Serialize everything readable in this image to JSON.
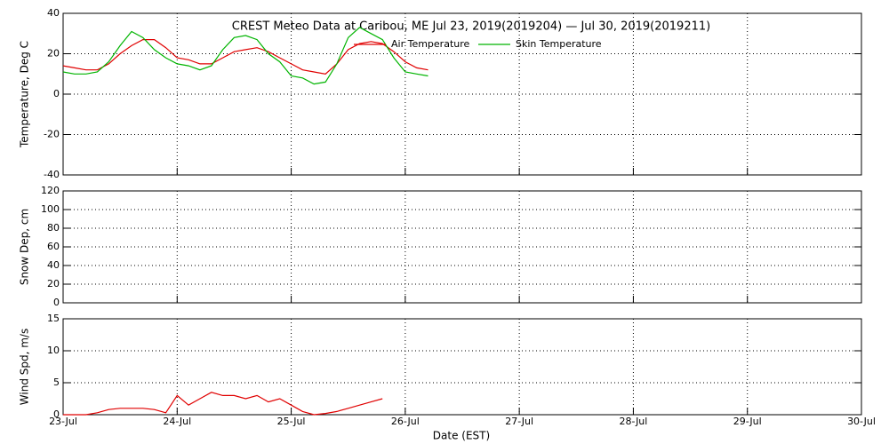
{
  "chart_data": [
    {
      "type": "line",
      "title": "CREST Meteo Data at Caribou, ME   Jul 23, 2019(2019204) — Jul 30, 2019(2019211)",
      "ylabel": "Temperature, Deg C",
      "ylim": [
        -40,
        40
      ],
      "yticks": [
        -40,
        -20,
        0,
        20,
        40
      ],
      "xlim": [
        0,
        7
      ],
      "grid": true,
      "x": [
        0,
        0.1,
        0.2,
        0.3,
        0.4,
        0.5,
        0.6,
        0.7,
        0.8,
        0.9,
        1.0,
        1.1,
        1.2,
        1.3,
        1.4,
        1.5,
        1.6,
        1.7,
        1.8,
        1.9,
        2.0,
        2.1,
        2.2,
        2.3,
        2.4,
        2.5,
        2.6,
        2.7,
        2.8,
        2.9,
        3.0,
        3.1,
        3.2
      ],
      "series": [
        {
          "name": "Air Temperature",
          "color": "#e00000",
          "values": [
            14,
            13,
            12,
            12,
            15,
            20,
            24,
            27,
            27,
            23,
            18,
            17,
            15,
            15,
            18,
            21,
            22,
            23,
            21,
            18,
            15,
            12,
            11,
            10,
            15,
            22,
            25,
            26,
            25,
            21,
            16,
            13,
            12
          ]
        },
        {
          "name": "Skin Temperature",
          "color": "#00b400",
          "values": [
            11,
            10,
            10,
            11,
            16,
            24,
            31,
            28,
            22,
            18,
            15,
            14,
            12,
            14,
            22,
            28,
            29,
            27,
            20,
            16,
            9,
            8,
            5,
            6,
            15,
            28,
            33,
            30,
            27,
            18,
            11,
            10,
            9
          ]
        }
      ]
    },
    {
      "type": "line",
      "ylabel": "Snow Dep, cm",
      "ylim": [
        0,
        120
      ],
      "yticks": [
        0,
        20,
        40,
        60,
        80,
        100,
        120
      ],
      "xlim": [
        0,
        7
      ],
      "grid": true,
      "series": []
    },
    {
      "type": "line",
      "ylabel": "Wind Spd, m/s",
      "xlabel": "Date (EST)",
      "ylim": [
        0,
        15
      ],
      "yticks": [
        0,
        5,
        10,
        15
      ],
      "xlim": [
        0,
        7
      ],
      "grid": true,
      "xticks": [
        {
          "value": 0,
          "label": "23-Jul"
        },
        {
          "value": 1,
          "label": "24-Jul"
        },
        {
          "value": 2,
          "label": "25-Jul"
        },
        {
          "value": 3,
          "label": "26-Jul"
        },
        {
          "value": 4,
          "label": "27-Jul"
        },
        {
          "value": 5,
          "label": "28-Jul"
        },
        {
          "value": 6,
          "label": "29-Jul"
        },
        {
          "value": 7,
          "label": "30-Jul"
        }
      ],
      "x": [
        0,
        0.1,
        0.2,
        0.3,
        0.4,
        0.5,
        0.6,
        0.7,
        0.8,
        0.9,
        1.0,
        1.1,
        1.2,
        1.3,
        1.4,
        1.5,
        1.6,
        1.7,
        1.8,
        1.9,
        2.0,
        2.1,
        2.2,
        2.3,
        2.4,
        2.5,
        2.6,
        2.7,
        2.8
      ],
      "series": [
        {
          "name": "Wind Speed",
          "color": "#e00000",
          "values": [
            0,
            0,
            0,
            0.3,
            0.8,
            1,
            1,
            1,
            0.8,
            0.3,
            3,
            1.5,
            2.5,
            3.5,
            3,
            3,
            2.5,
            3,
            2,
            2.5,
            1.5,
            0.5,
            0,
            0.2,
            0.5,
            1,
            1.5,
            2,
            2.5
          ]
        }
      ]
    }
  ]
}
